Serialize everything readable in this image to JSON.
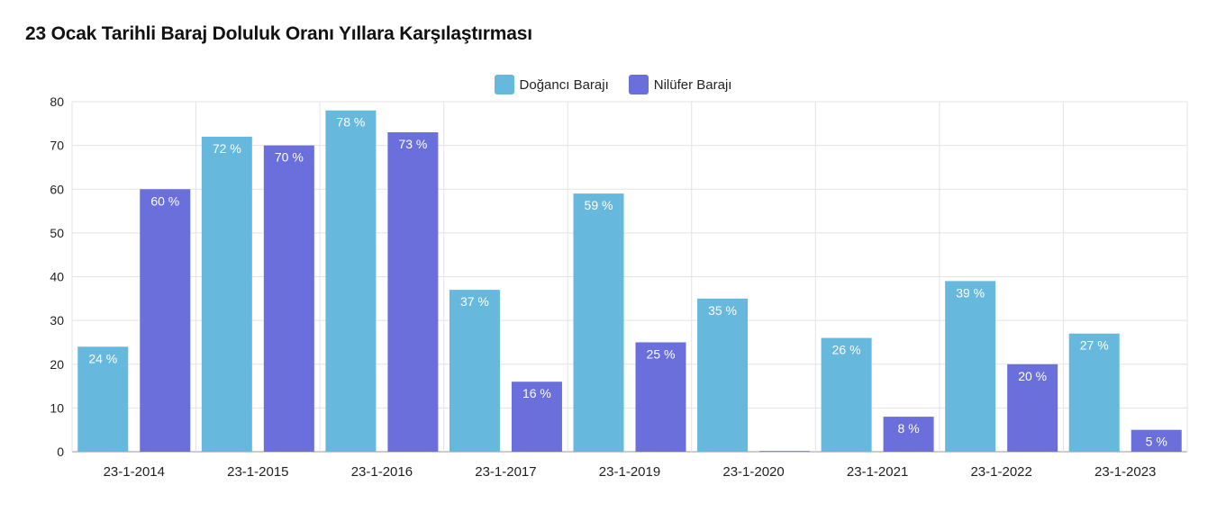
{
  "chart_data": {
    "type": "bar",
    "title": "23 Ocak Tarihli Baraj Doluluk Oranı Yıllara Karşılaştırması",
    "xlabel": "",
    "ylabel": "",
    "ylim": [
      0,
      80
    ],
    "yticks": [
      0,
      10,
      20,
      30,
      40,
      50,
      60,
      70,
      80
    ],
    "grid": true,
    "legend_position": "top-center",
    "value_suffix": " %",
    "categories": [
      "23-1-2014",
      "23-1-2015",
      "23-1-2016",
      "23-1-2017",
      "23-1-2019",
      "23-1-2020",
      "23-1-2021",
      "23-1-2022",
      "23-1-2023"
    ],
    "series": [
      {
        "name": "Doğancı Barajı",
        "color": "#67b8dd",
        "values": [
          24,
          72,
          78,
          37,
          59,
          35,
          26,
          39,
          27
        ]
      },
      {
        "name": "Nilüfer Barajı",
        "color": "#6a6fdc",
        "values": [
          60,
          70,
          73,
          16,
          25,
          0,
          8,
          20,
          5
        ]
      }
    ]
  }
}
